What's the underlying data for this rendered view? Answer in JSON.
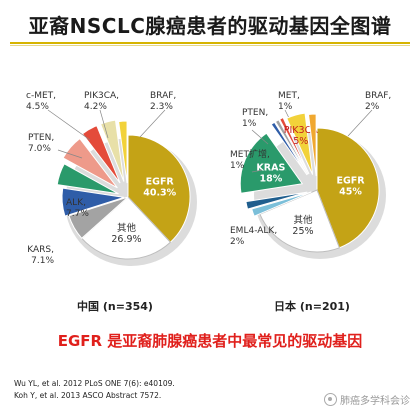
{
  "title": "亚裔NSCLC腺癌患者的驱动基因全图谱",
  "conclusion": "EGFR 是亚裔肺腺癌患者中最常见的驱动基因",
  "references": [
    "Wu YL, et al. 2012  PLoS ONE 7(6): e40109.",
    "Koh Y, et al. 2013 ASCO Abstract 7572."
  ],
  "watermark": "肺癌多学科会诊",
  "watermark_icon": "chat-bubble-icon",
  "chart_data": [
    {
      "type": "pie",
      "title": "中国 (n=354)",
      "slices": [
        {
          "label": "EGFR",
          "value": 40.3,
          "value_text": "40.3%",
          "color": "#c4a316",
          "text_color": "#ffffff"
        },
        {
          "label": "其他",
          "value": 26.9,
          "value_text": "26.9%",
          "color": "#ffffff",
          "text_color": "#333333"
        },
        {
          "label": "KARS",
          "value": 7.1,
          "value_text": "7.1%",
          "color": "#a3a3a3",
          "text_color": "#333333"
        },
        {
          "label": "ALK",
          "value": 7.7,
          "value_text": "7.7%",
          "color": "#2f5da8",
          "text_color": "#333333"
        },
        {
          "label": "",
          "value": 6.0,
          "value_text": "",
          "color": "#2a9a6b",
          "text_color": "#333333"
        },
        {
          "label": "PTEN",
          "value": 7.0,
          "value_text": "7.0%",
          "color": "#ee9a8a",
          "text_color": "#333333"
        },
        {
          "label": "c-MET",
          "value": 4.5,
          "value_text": "4.5%",
          "color": "#e44b3a",
          "text_color": "#333333"
        },
        {
          "label": "PIK3CA",
          "value": 4.2,
          "value_text": "4.2%",
          "color": "#e8e0a8",
          "text_color": "#333333"
        },
        {
          "label": "BRAF",
          "value": 2.3,
          "value_text": "2.3%",
          "color": "#f2d23a",
          "text_color": "#333333"
        }
      ]
    },
    {
      "type": "pie",
      "title": "日本 (n=201)",
      "slices": [
        {
          "label": "EGFR",
          "value": 45,
          "value_text": "45%",
          "color": "#c4a316",
          "text_color": "#ffffff"
        },
        {
          "label": "其他",
          "value": 25,
          "value_text": "25%",
          "color": "#ffffff",
          "text_color": "#333333"
        },
        {
          "label": "EML4-ALK",
          "value": 2,
          "value_text": "2%",
          "color": "#7bbfd9",
          "text_color": "#333333"
        },
        {
          "label": "",
          "value": 2,
          "value_text": "",
          "color": "#1f5e8e",
          "text_color": "#333333"
        },
        {
          "label": "KRAS",
          "value": 18,
          "value_text": "18%",
          "color": "#2a9a6b",
          "text_color": "#ffffff"
        },
        {
          "label": "MET扩增",
          "value": 1,
          "value_text": "1%",
          "color": "#2f5da8",
          "text_color": "#333333"
        },
        {
          "label": "PTEN",
          "value": 1,
          "value_text": "1%",
          "color": "#a3a3a3",
          "text_color": "#333333"
        },
        {
          "label": "MET",
          "value": 1,
          "value_text": "1%",
          "color": "#e44b3a",
          "text_color": "#333333"
        },
        {
          "label": "PIK3CA",
          "value": 5,
          "value_text": "5%",
          "color": "#f2d23a",
          "text_color": "#c41e1e"
        },
        {
          "label": "BRAF",
          "value": 2,
          "value_text": "2%",
          "color": "#f0a830",
          "text_color": "#333333"
        }
      ]
    }
  ]
}
